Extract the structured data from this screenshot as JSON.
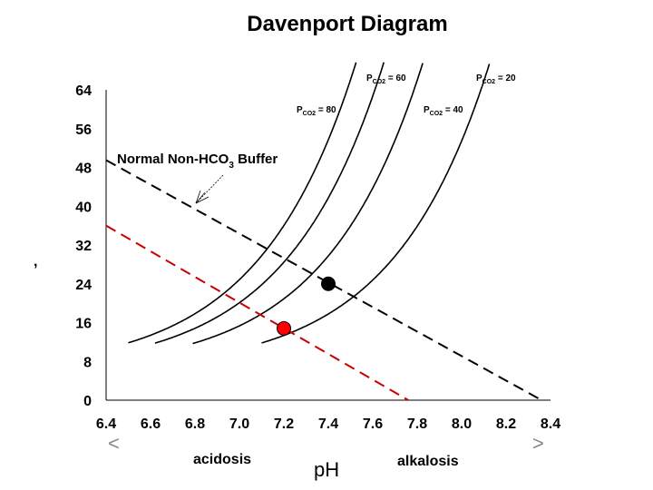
{
  "title": "Davenport Diagram",
  "chart_data": {
    "type": "line",
    "title": "Davenport Diagram",
    "xlabel": "pH",
    "ylabel": ",",
    "xlim": [
      6.4,
      8.4
    ],
    "ylim": [
      0,
      64
    ],
    "xticks": [
      "6.4",
      "6.6",
      "6.8",
      "7.0",
      "7.2",
      "7.4",
      "7.6",
      "7.8",
      "8.0",
      "8.2",
      "8.4"
    ],
    "yticks": [
      "0",
      "8",
      "16",
      "24",
      "32",
      "40",
      "48",
      "56",
      "64"
    ],
    "grid": false,
    "isopleths": [
      {
        "label_main": "P",
        "label_sub": "CO2",
        "label_value": " = 80",
        "pco2": 80,
        "color": "#000000",
        "x_start": 6.5
      },
      {
        "label_main": "P",
        "label_sub": "CO2",
        "label_value": " = 60",
        "pco2": 60,
        "color": "#000000",
        "x_start": 6.62
      },
      {
        "label_main": "P",
        "label_sub": "CO2",
        "label_value": " = 40",
        "pco2": 40,
        "color": "#000000",
        "x_start": 6.79
      },
      {
        "label_main": "P",
        "label_sub": "CO2",
        "label_value": " = 20",
        "pco2": 20,
        "color": "#000000",
        "x_start": 7.1
      }
    ],
    "buffer_lines": [
      {
        "name": "Normal Non-HCO3 Buffer",
        "color": "#000000",
        "dash": true,
        "points": [
          [
            6.4,
            49.5
          ],
          [
            8.36,
            0
          ]
        ]
      },
      {
        "name": "",
        "color": "#cc0000",
        "dash": true,
        "points": [
          [
            6.4,
            36
          ],
          [
            7.76,
            0
          ]
        ]
      }
    ],
    "points": [
      {
        "x": 7.4,
        "y": 24,
        "color": "#000000"
      },
      {
        "x": 7.2,
        "y": 14.8,
        "color": "#ff0000"
      }
    ],
    "annotations": {
      "buffer_label_main": "Normal Non-HCO",
      "buffer_label_sub": "3",
      "buffer_label_end": " Buffer",
      "acidosis": "acidosis",
      "alkalosis": "alkalosis",
      "left_arrow": "<",
      "right_arrow": ">"
    }
  }
}
